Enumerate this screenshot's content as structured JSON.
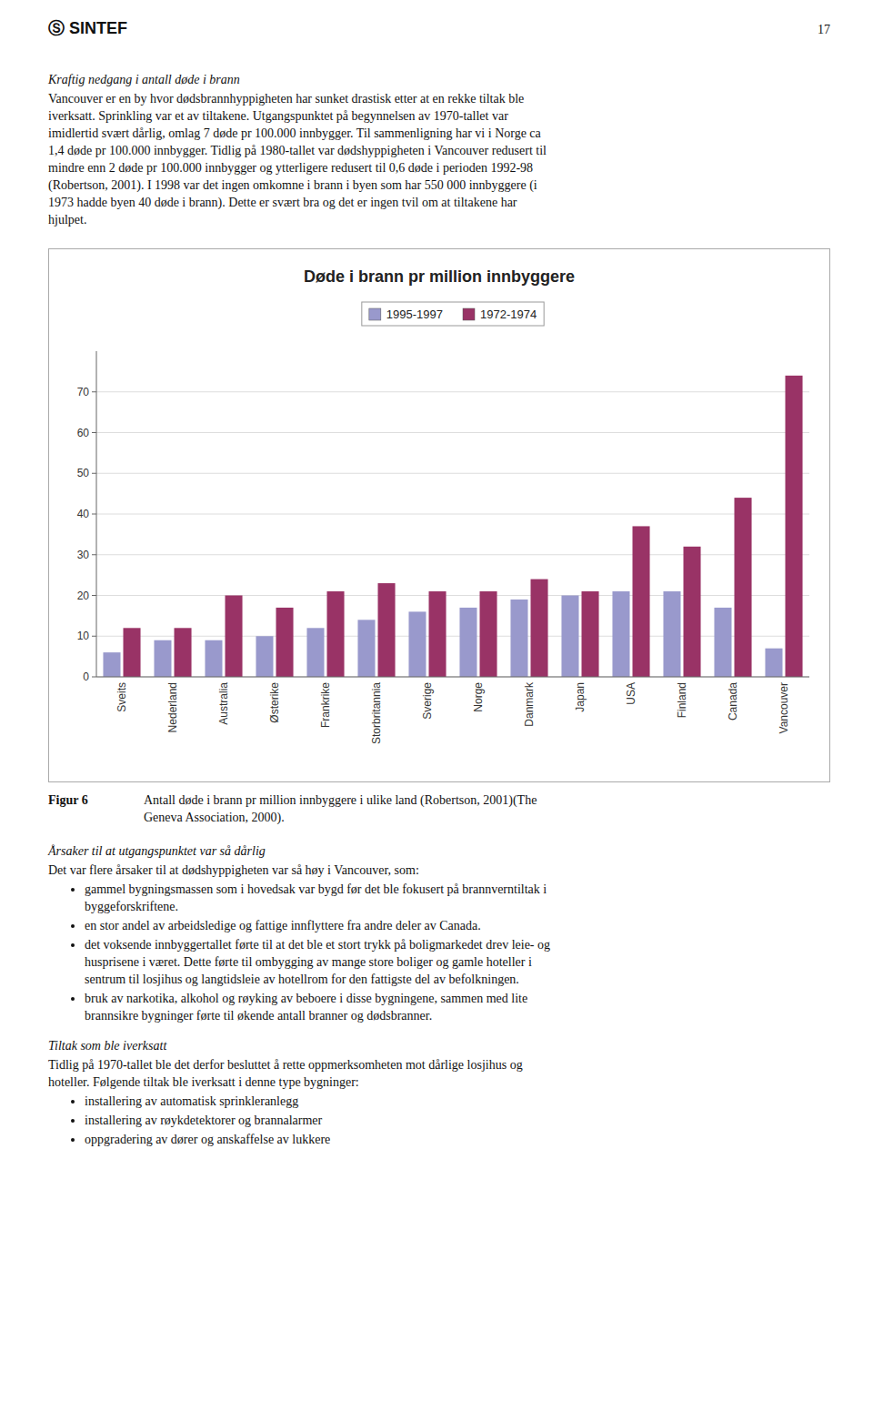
{
  "page": {
    "header": "Ⓢ  SINTEF",
    "page_number": "17",
    "heading": "Kraftig nedgang i antall døde i brann",
    "body": [
      "Vancouver er en by hvor dødsbrannhyppigheten har sunket drastisk etter at en rekke tiltak ble",
      "iverksatt. Sprinkling var et av tiltakene. Utgangspunktet på begynnelsen av 1970-tallet var",
      "imidlertid svært dårlig, omlag 7 døde pr 100.000 innbygger. Til sammenligning har vi i Norge ca",
      "1,4 døde pr 100.000 innbygger. Tidlig på 1980-tallet var dødshyppigheten i Vancouver redusert til",
      "mindre enn 2 døde pr 100.000 innbygger og ytterligere redusert til 0,6 døde i perioden 1992-98",
      "(Robertson, 2001). I 1998 var det ingen omkomne i brann i byen som har 550 000 innbyggere (i",
      "1973 hadde byen 40 døde i brann). Dette er svært bra og det er ingen tvil om at tiltakene har",
      "hjulpet."
    ],
    "caption_label": "Figur 6",
    "caption": [
      "Antall døde i brann pr million innbyggere i ulike land (Robertson, 2001)(The",
      "Geneva Association, 2000)."
    ],
    "section1_heading": "Årsaker til at utgangspunktet var så dårlig",
    "section1_intro": "Det var flere årsaker til at dødshyppigheten var så høy i Vancouver, som:",
    "section1_bullets": [
      [
        "gammel bygningsmassen som i hovedsak var bygd før det ble fokusert på brannverntiltak i",
        "byggeforskriftene."
      ],
      [
        "en stor andel av arbeidsledige og fattige innflyttere fra andre deler av Canada."
      ],
      [
        "det voksende innbyggertallet førte til at det ble et stort trykk på boligmarkedet drev leie- og",
        "husprisene i været. Dette førte til ombygging av mange store boliger og gamle hoteller i",
        "sentrum til losjihus og langtidsleie av hotellrom for den fattigste del av befolkningen."
      ],
      [
        "bruk av narkotika, alkohol og røyking av beboere i disse bygningene, sammen med lite",
        "brannsikre bygninger førte til økende antall branner og dødsbranner."
      ]
    ],
    "section2_heading": "Tiltak som ble iverksatt",
    "section2_intro": [
      "Tidlig på 1970-tallet ble det derfor besluttet å rette oppmerksomheten mot dårlige losjihus og",
      "hoteller. Følgende tiltak ble iverksatt i denne type bygninger:"
    ],
    "section2_bullets": [
      "installering av automatisk sprinkleranlegg",
      "installering av røykdetektorer og brannalarmer",
      "oppgradering av dører og anskaffelse av lukkere"
    ]
  },
  "chart_data": {
    "type": "bar",
    "title": "Døde i brann pr million innbyggere",
    "categories": [
      "Sveits",
      "Nederland",
      "Australia",
      "Østerike",
      "Frankrike",
      "Storbritannia",
      "Sverige",
      "Norge",
      "Danmark",
      "Japan",
      "USA",
      "Finland",
      "Canada",
      "Vancouver"
    ],
    "series": [
      {
        "name": "1995-1997",
        "color": "#9999CC",
        "values": [
          6,
          9,
          9,
          10,
          12,
          14,
          16,
          17,
          19,
          20,
          21,
          21,
          17,
          7
        ]
      },
      {
        "name": "1972-1974",
        "color": "#993366",
        "values": [
          12,
          12,
          20,
          17,
          21,
          23,
          21,
          21,
          24,
          21,
          37,
          32,
          44,
          74
        ]
      }
    ],
    "ylim": [
      0,
      80
    ],
    "yticks": [
      0,
      10,
      20,
      30,
      40,
      50,
      60,
      70
    ],
    "grid": true,
    "legend": "top"
  }
}
